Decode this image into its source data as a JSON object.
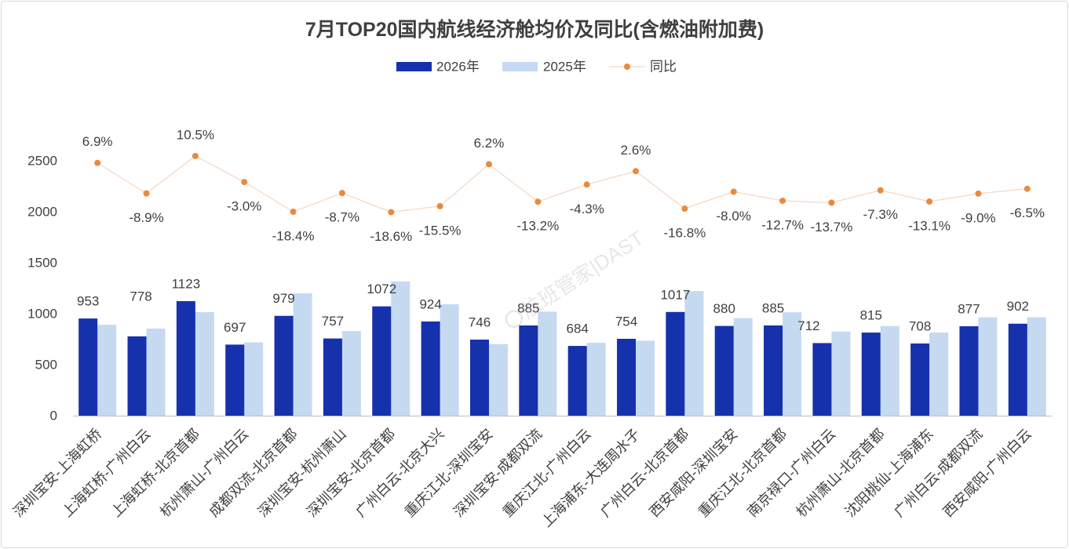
{
  "watermark": "航班管家|DAST",
  "chart_data": {
    "type": "bar",
    "title": "7月TOP20国内航线经济舱均价及同比(含燃油附加费)",
    "xlabel": "",
    "ylabel": "",
    "categories": [
      "深圳宝安-上海虹桥",
      "上海虹桥-广州白云",
      "上海虹桥-北京首都",
      "杭州萧山-广州白云",
      "成都双流-北京首都",
      "深圳宝安-杭州萧山",
      "深圳宝安-北京首都",
      "广州白云-北京大兴",
      "重庆江北-深圳宝安",
      "深圳宝安-成都双流",
      "重庆江北-广州白云",
      "上海浦东-大连周水子",
      "广州白云-北京首都",
      "西安咸阳-深圳宝安",
      "重庆江北-北京首都",
      "南京禄口-广州白云",
      "杭州萧山-北京首都",
      "沈阳桃仙-上海浦东",
      "广州白云-成都双流",
      "西安咸阳-广州白云"
    ],
    "series": [
      {
        "name": "2026年",
        "type": "bar",
        "axis": "primary",
        "color": "#1531AC",
        "data_labels": true,
        "values": [
          953,
          778,
          1123,
          697,
          979,
          757,
          1072,
          924,
          746,
          885,
          684,
          754,
          1017,
          880,
          885,
          712,
          815,
          708,
          877,
          902
        ]
      },
      {
        "name": "2025年",
        "type": "bar",
        "axis": "primary",
        "color": "#C5D9F1",
        "data_labels": false,
        "values": [
          891,
          854,
          1016,
          719,
          1200,
          829,
          1317,
          1093,
          702,
          1020,
          715,
          735,
          1222,
          957,
          1014,
          825,
          879,
          815,
          964,
          965
        ]
      },
      {
        "name": "同比",
        "type": "line",
        "axis": "secondary",
        "color": "#E98A3F",
        "line_color": "#F6D6C2",
        "data_labels": true,
        "value_suffix": "%",
        "values": [
          6.9,
          -8.9,
          10.5,
          -3.0,
          -18.4,
          -8.7,
          -18.6,
          -15.5,
          6.2,
          -13.2,
          -4.3,
          2.6,
          -16.8,
          -8.0,
          -12.7,
          -13.7,
          -7.3,
          -13.1,
          -9.0,
          -6.5
        ]
      }
    ],
    "ylim": [
      0,
      2500
    ],
    "y_ticks": [
      0,
      500,
      1000,
      1500,
      2000,
      2500
    ],
    "y2lim": [
      -124,
      8
    ],
    "y2_visible": false,
    "legend": "top-center",
    "grid": false
  }
}
